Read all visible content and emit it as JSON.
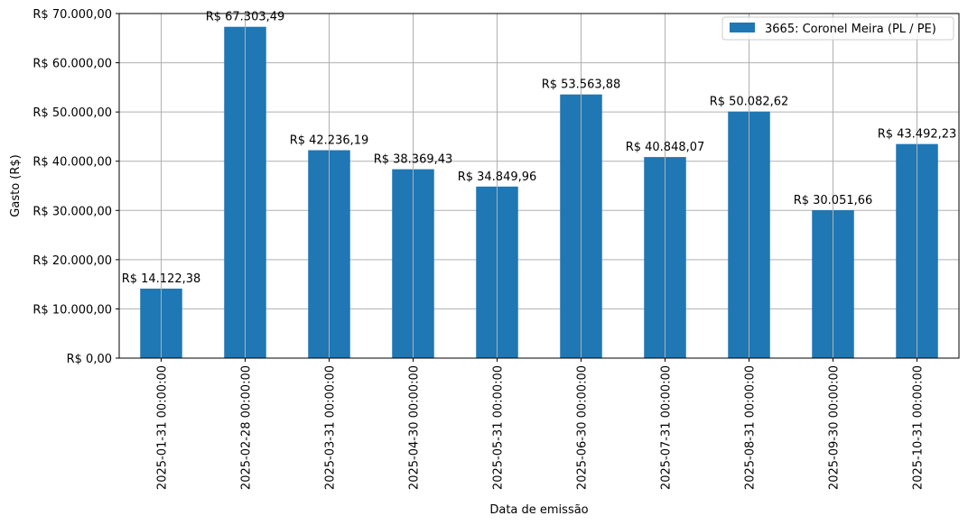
{
  "chart_data": {
    "type": "bar",
    "categories": [
      "2025-01-31 00:00:00",
      "2025-02-28 00:00:00",
      "2025-03-31 00:00:00",
      "2025-04-30 00:00:00",
      "2025-05-31 00:00:00",
      "2025-06-30 00:00:00",
      "2025-07-31 00:00:00",
      "2025-08-31 00:00:00",
      "2025-09-30 00:00:00",
      "2025-10-31 00:00:00"
    ],
    "series": [
      {
        "name": "3665: Coronel Meira (PL / PE)",
        "values": [
          14122.38,
          67303.49,
          42236.19,
          38369.43,
          34849.96,
          53563.88,
          40848.07,
          50082.62,
          30051.66,
          43492.23
        ],
        "color": "#1f77b4"
      }
    ],
    "data_labels": [
      "R$ 14.122,38",
      "R$ 67.303,49",
      "R$ 42.236,19",
      "R$ 38.369,43",
      "R$ 34.849,96",
      "R$ 53.563,88",
      "R$ 40.848,07",
      "R$ 50.082,62",
      "R$ 30.051,66",
      "R$ 43.492,23"
    ],
    "xlabel": "Data de emissão",
    "ylabel": "Gasto (R$)",
    "ylim": [
      0,
      70000
    ],
    "yticks": [
      0,
      10000,
      20000,
      30000,
      40000,
      50000,
      60000,
      70000
    ],
    "ytick_labels": [
      "R$ 0,00",
      "R$ 10.000,00",
      "R$ 20.000,00",
      "R$ 30.000,00",
      "R$ 40.000,00",
      "R$ 50.000,00",
      "R$ 60.000,00",
      "R$ 70.000,00"
    ],
    "grid": true,
    "legend_position": "top-right"
  }
}
